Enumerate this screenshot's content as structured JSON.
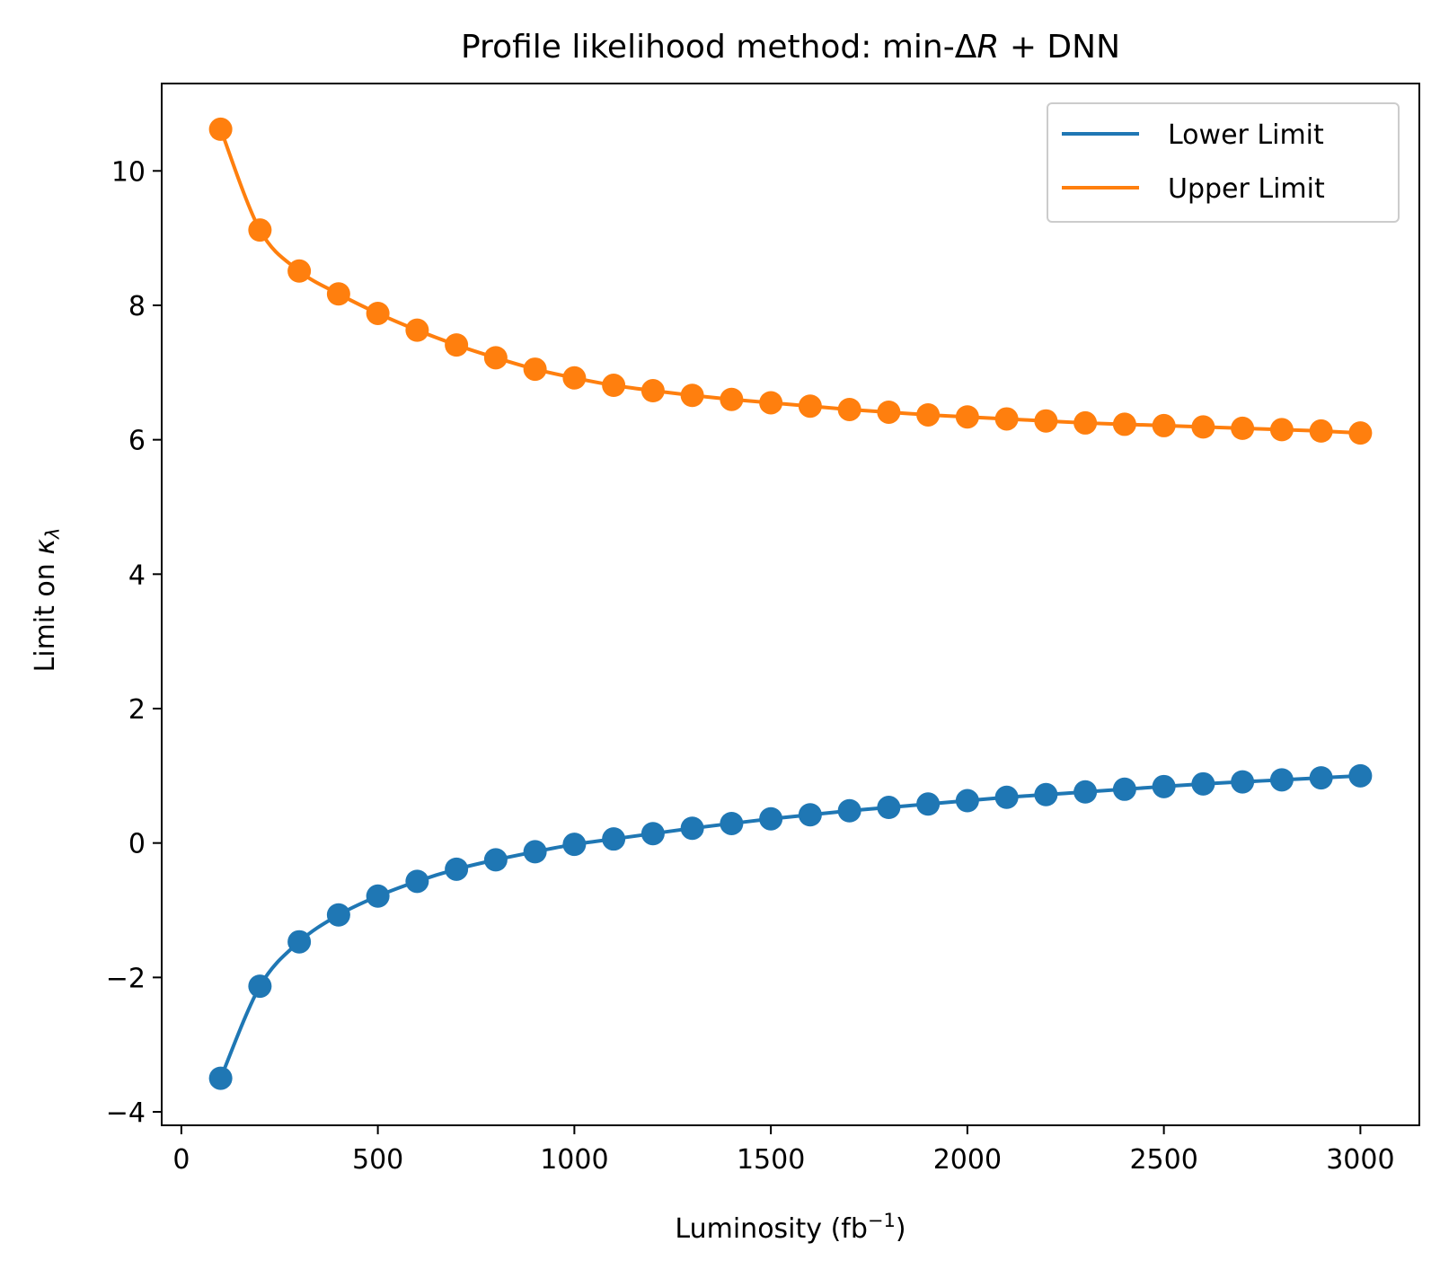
{
  "chart_data": {
    "type": "line",
    "title": {
      "prefix": "Profile likelihood method: min-Δ",
      "italic": "R",
      "suffix": " + DNN"
    },
    "xlabel": {
      "text": "Luminosity (fb",
      "sup": "−1",
      "tail": ")"
    },
    "ylabel": {
      "text": "Limit on ",
      "kappa": "κ",
      "sub": "λ"
    },
    "xlim": [
      -50,
      3150
    ],
    "ylim": [
      -4.2,
      11.3
    ],
    "xticks": [
      0,
      500,
      1000,
      1500,
      2000,
      2500,
      3000
    ],
    "xtick_labels": [
      "0",
      "500",
      "1000",
      "1500",
      "2000",
      "2500",
      "3000"
    ],
    "yticks": [
      -4,
      -2,
      0,
      2,
      4,
      6,
      8,
      10
    ],
    "ytick_labels": [
      "−4",
      "−2",
      "0",
      "2",
      "4",
      "6",
      "8",
      "10"
    ],
    "grid": false,
    "legend_position": "top-right",
    "x": [
      100,
      200,
      300,
      400,
      500,
      600,
      700,
      800,
      900,
      1000,
      1100,
      1200,
      1300,
      1400,
      1500,
      1600,
      1700,
      1800,
      1900,
      2000,
      2100,
      2200,
      2300,
      2400,
      2500,
      2600,
      2700,
      2800,
      2900,
      3000
    ],
    "series": [
      {
        "name": "Lower Limit",
        "color": "#1f77b4",
        "values": [
          -3.5,
          -2.13,
          -1.47,
          -1.07,
          -0.79,
          -0.57,
          -0.39,
          -0.25,
          -0.13,
          -0.02,
          0.06,
          0.14,
          0.22,
          0.29,
          0.36,
          0.42,
          0.48,
          0.53,
          0.58,
          0.63,
          0.68,
          0.72,
          0.76,
          0.8,
          0.84,
          0.88,
          0.91,
          0.94,
          0.97,
          1.0
        ]
      },
      {
        "name": "Upper Limit",
        "color": "#ff7f0e",
        "values": [
          10.62,
          9.12,
          8.51,
          8.17,
          7.88,
          7.63,
          7.41,
          7.22,
          7.05,
          6.92,
          6.81,
          6.73,
          6.66,
          6.6,
          6.55,
          6.5,
          6.45,
          6.41,
          6.37,
          6.34,
          6.31,
          6.28,
          6.25,
          6.23,
          6.21,
          6.19,
          6.17,
          6.15,
          6.13,
          6.1
        ]
      }
    ]
  }
}
